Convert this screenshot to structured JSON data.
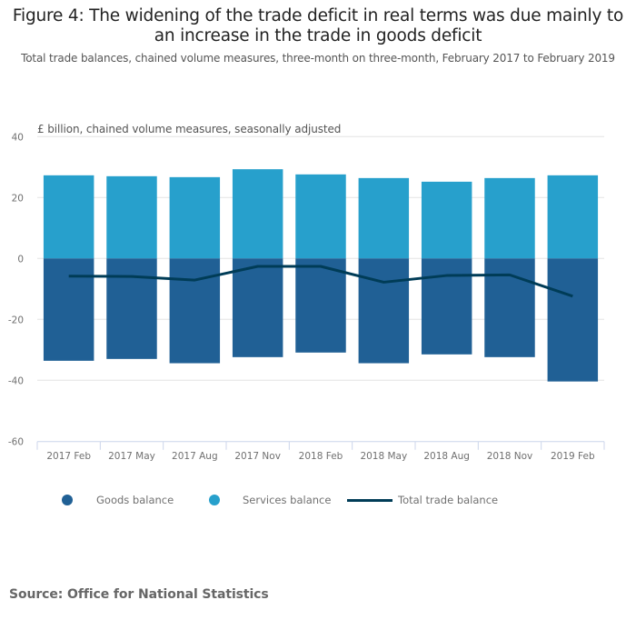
{
  "chart_data": {
    "type": "bar",
    "stacked": true,
    "title": "Figure 4: The widening of the trade deficit in real terms was due mainly to an increase in the trade in goods deficit",
    "subtitle": "Total trade balances, chained volume measures, three-month on three-month, February 2017 to February 2019",
    "ylabel": "£ billion, chained volume measures, seasonally adjusted",
    "xlabel": "",
    "ylim": [
      -60,
      40
    ],
    "yticks": [
      40,
      20,
      0,
      -20,
      -40,
      -60
    ],
    "grid": true,
    "categories": [
      "2017 Feb",
      "2017 May",
      "2017 Aug",
      "2017 Nov",
      "2018 Feb",
      "2018 May",
      "2018 Aug",
      "2018 Nov",
      "2019 Feb"
    ],
    "series": [
      {
        "name": "Goods balance",
        "type": "bar",
        "color": "#206095",
        "values": [
          -33.6,
          -33.0,
          -34.4,
          -32.4,
          -30.9,
          -34.4,
          -31.5,
          -32.4,
          -40.4
        ]
      },
      {
        "name": "Services balance",
        "type": "bar",
        "color": "#27a0cc",
        "values": [
          27.3,
          27.0,
          26.7,
          29.3,
          27.6,
          26.4,
          25.2,
          26.4,
          27.3
        ]
      },
      {
        "name": "Total trade balance",
        "type": "line",
        "color": "#003c57",
        "values": [
          -5.8,
          -5.9,
          -7.1,
          -2.6,
          -2.6,
          -7.8,
          -5.6,
          -5.4,
          -12.4
        ]
      }
    ],
    "legend_position": "bottom-left"
  },
  "source": "Source: Office for National Statistics"
}
